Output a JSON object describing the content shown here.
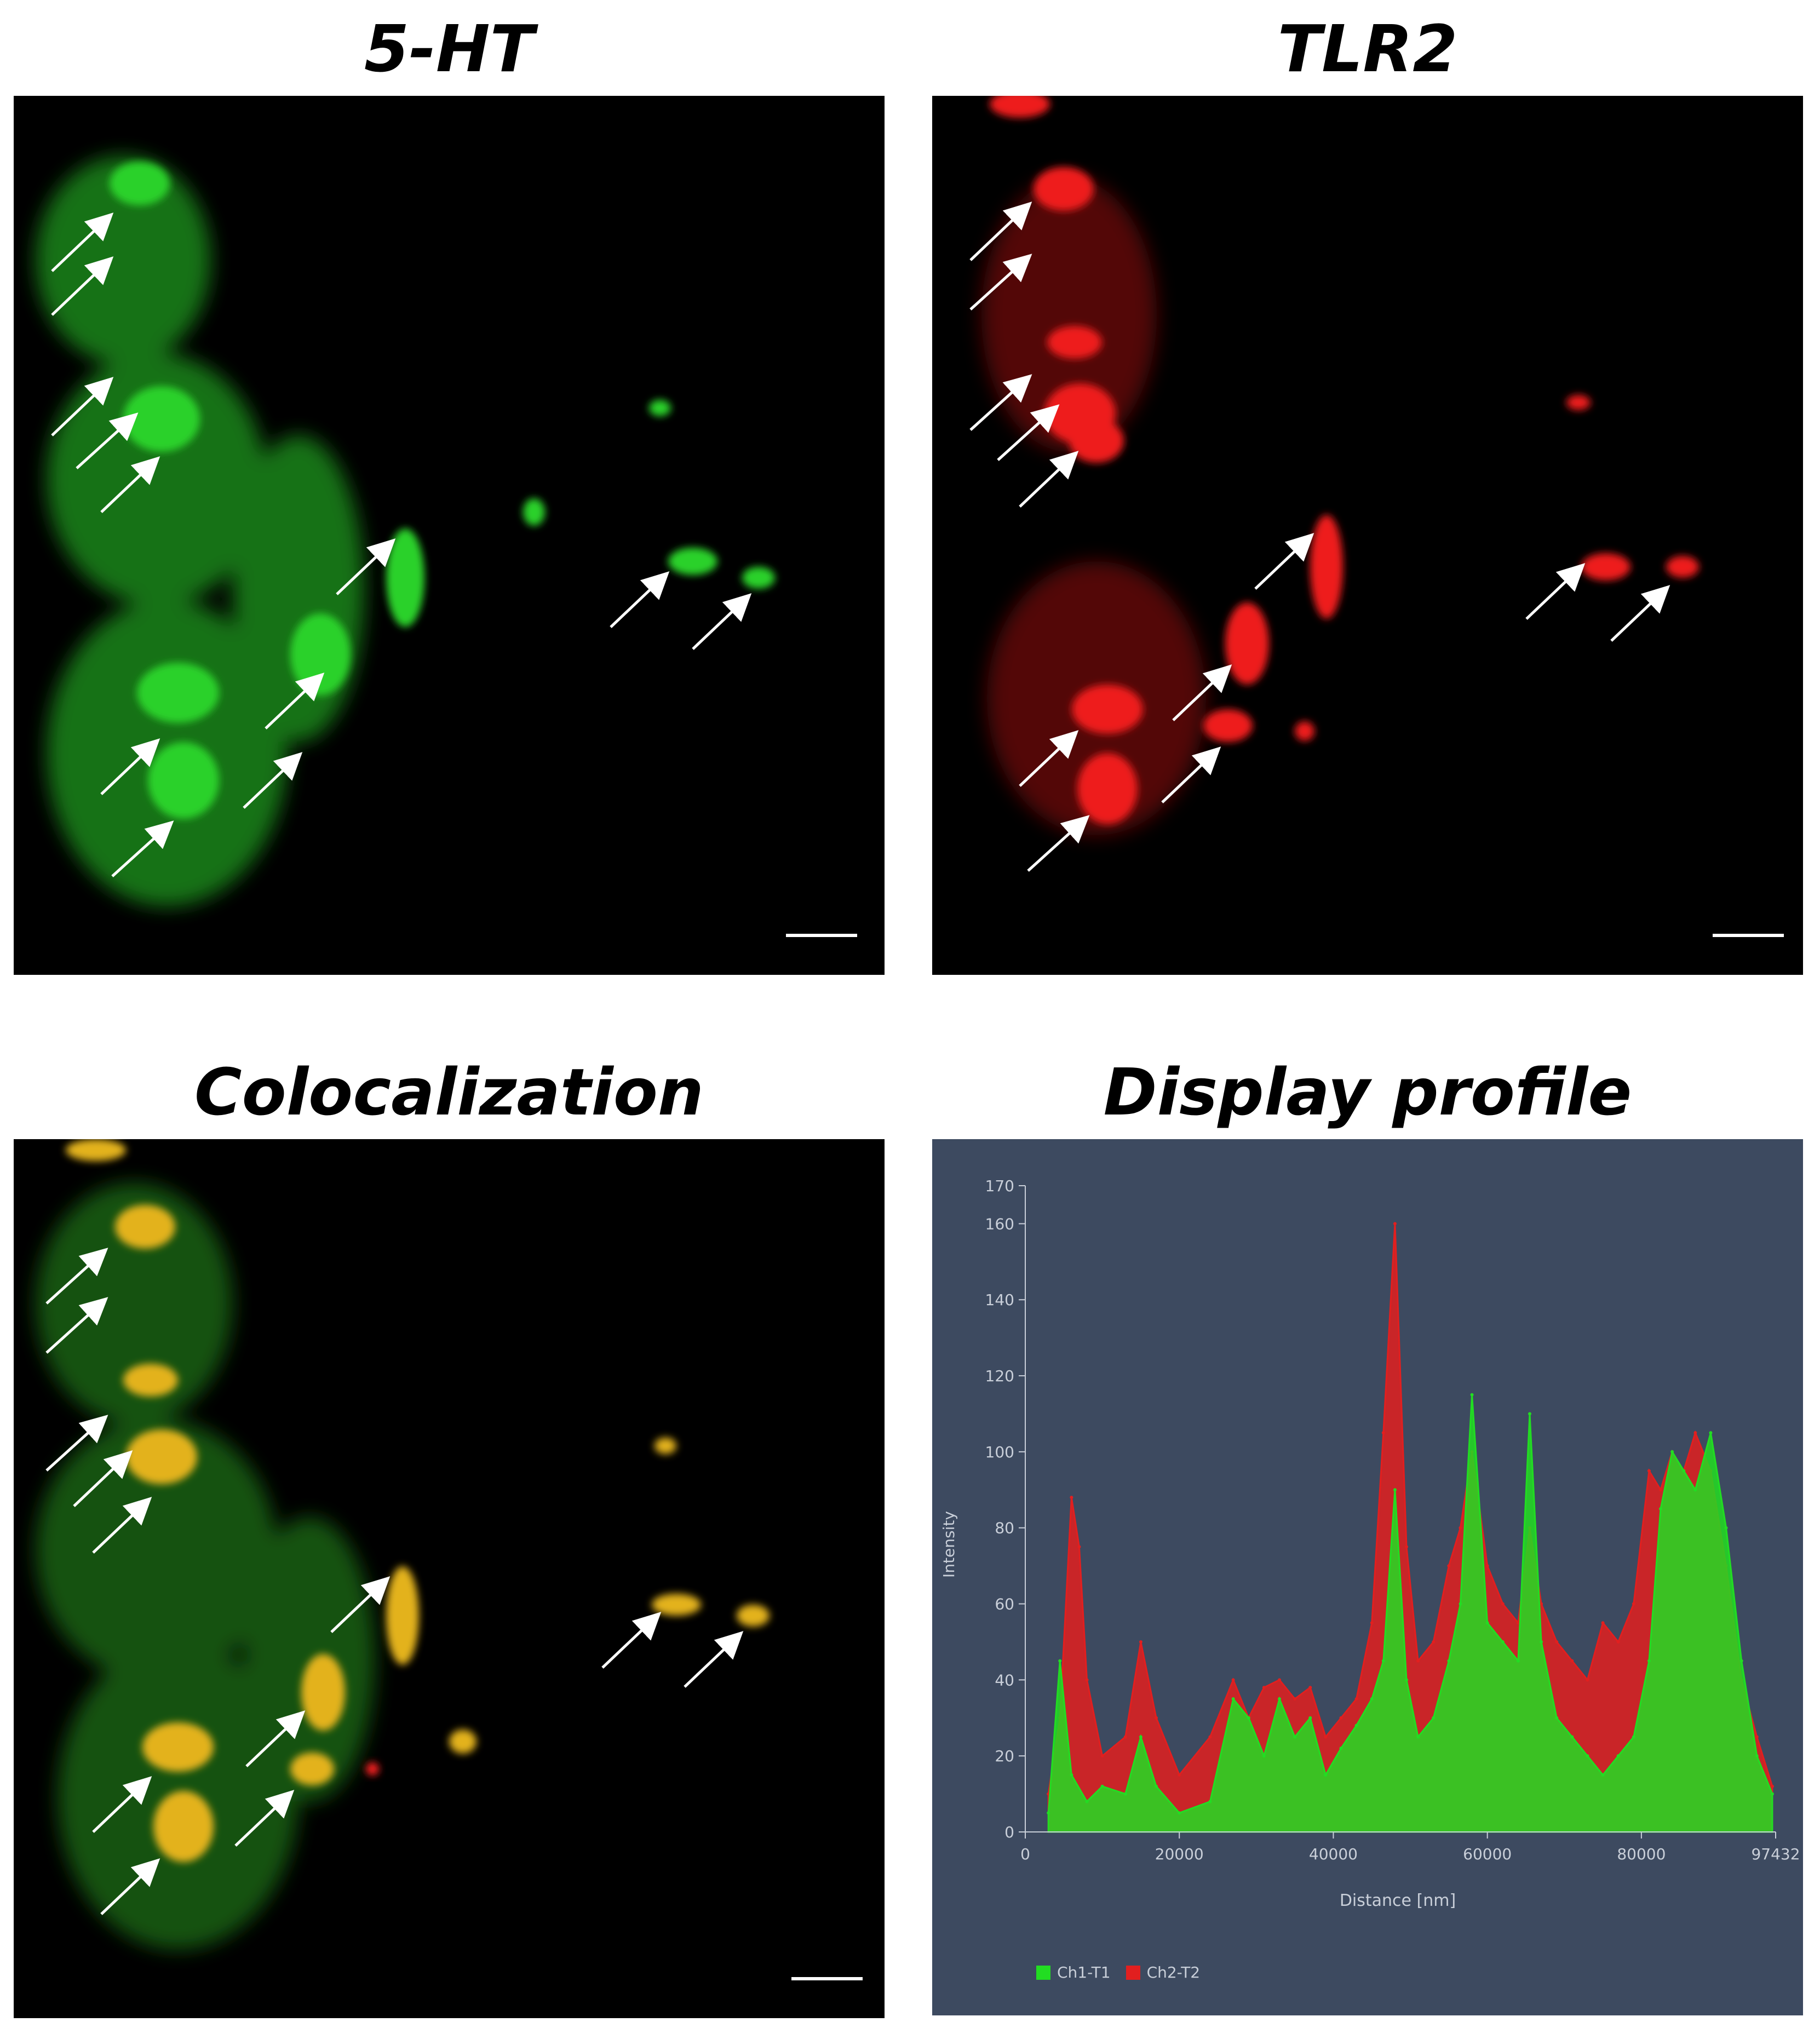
{
  "panels": {
    "p1": {
      "title": "5-HT",
      "channel_color": "#22c422"
    },
    "p2": {
      "title": "TLR2",
      "channel_color": "#e31a1a"
    },
    "p3": {
      "title": "Colocalization",
      "channel_color": "#e3b21c"
    },
    "p4": {
      "title": "Display profile"
    }
  },
  "chart_data": {
    "type": "area",
    "title": "",
    "xlabel": "Distance [nm]",
    "ylabel": "Intensity",
    "xlim": [
      0,
      97432
    ],
    "ylim": [
      0,
      170
    ],
    "x_ticks": [
      "0",
      "20000",
      "40000",
      "60000",
      "80000",
      "97432"
    ],
    "y_ticks": [
      "0",
      "20",
      "40",
      "60",
      "80",
      "100",
      "120",
      "140",
      "160",
      "170"
    ],
    "legend_placement": "bottom-left",
    "series": [
      {
        "name": "Ch1-T1",
        "color": "#22dd22",
        "x": [
          3000,
          4500,
          6000,
          8000,
          10000,
          13000,
          15000,
          17000,
          20000,
          24000,
          27000,
          29000,
          31000,
          33000,
          35000,
          37000,
          39000,
          41000,
          43000,
          45000,
          46500,
          48000,
          49500,
          51000,
          53000,
          55000,
          56500,
          58000,
          60000,
          62000,
          64000,
          65500,
          67000,
          69000,
          71000,
          73000,
          75000,
          77000,
          79000,
          81000,
          82500,
          84000,
          85500,
          87000,
          89000,
          91000,
          93000,
          95000,
          97000
        ],
        "y": [
          5,
          45,
          15,
          8,
          12,
          10,
          25,
          12,
          5,
          8,
          35,
          30,
          20,
          35,
          25,
          30,
          15,
          22,
          28,
          35,
          45,
          90,
          40,
          25,
          30,
          45,
          60,
          115,
          55,
          50,
          45,
          110,
          50,
          30,
          25,
          20,
          15,
          20,
          25,
          45,
          85,
          100,
          95,
          90,
          105,
          80,
          45,
          20,
          10
        ]
      },
      {
        "name": "Ch2-T2",
        "color": "#e21f1f",
        "x": [
          3000,
          4500,
          6000,
          7000,
          8000,
          10000,
          13000,
          15000,
          17000,
          20000,
          24000,
          27000,
          29000,
          31000,
          33000,
          35000,
          37000,
          39000,
          41000,
          43000,
          45000,
          46500,
          48000,
          49500,
          51000,
          53000,
          55000,
          56500,
          58000,
          60000,
          62000,
          64000,
          65500,
          67000,
          69000,
          71000,
          73000,
          75000,
          77000,
          79000,
          81000,
          82500,
          84000,
          85500,
          87000,
          89000,
          91000,
          93000,
          95000,
          97000
        ],
        "y": [
          10,
          30,
          88,
          75,
          40,
          20,
          25,
          50,
          30,
          15,
          25,
          40,
          30,
          38,
          40,
          35,
          38,
          25,
          30,
          35,
          55,
          105,
          160,
          75,
          45,
          50,
          70,
          80,
          100,
          70,
          60,
          55,
          80,
          60,
          50,
          45,
          40,
          55,
          50,
          60,
          95,
          90,
          100,
          95,
          105,
          95,
          70,
          40,
          25,
          12
        ]
      }
    ]
  }
}
